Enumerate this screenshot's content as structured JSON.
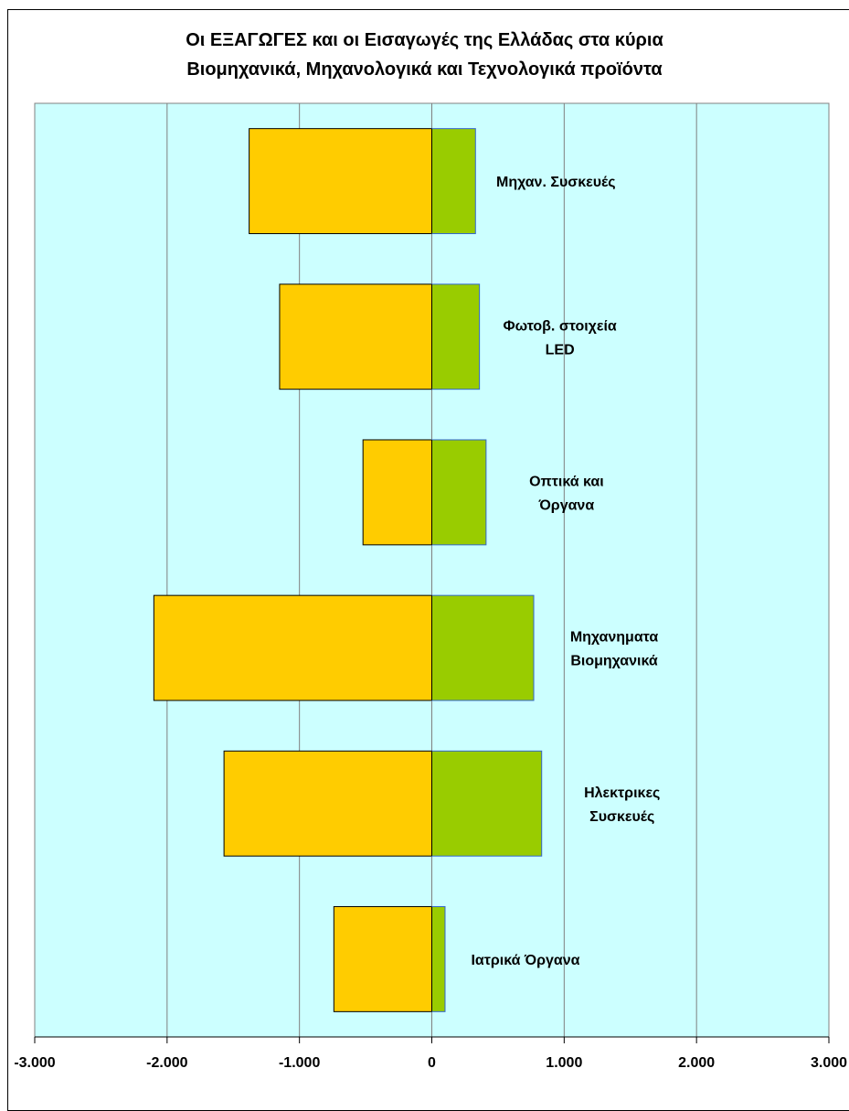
{
  "chart_data": {
    "type": "bar",
    "title_lines": [
      "Οι ΕΞΑΓΩΓΕΣ και οι Εισαγωγές της Ελλάδας στα κύρια",
      "Βιομηχανικά, Μηχανολογικά και Τεχνολογικά προϊόντα"
    ],
    "categories": [
      [
        "Μηχαν. Συσκευές"
      ],
      [
        "Φωτοβ. στοιχεία",
        "LED"
      ],
      [
        "Οπτικά και",
        "Όργανα"
      ],
      [
        "Μηχανηματα",
        "Βιομηχανικά"
      ],
      [
        "Ηλεκτρικες",
        "Συσκευές"
      ],
      [
        "Ιατρικά Όργανα"
      ]
    ],
    "series": [
      {
        "values": [
          -1380,
          -1150,
          -520,
          -2100,
          -1570,
          -740
        ],
        "color": "#FFCC00"
      },
      {
        "values": [
          330,
          360,
          410,
          770,
          830,
          100
        ],
        "color": "#99CC00"
      }
    ],
    "xlim": [
      -3000,
      3000
    ],
    "xticks": [
      -3000,
      -2000,
      -1000,
      0,
      1000,
      2000,
      3000
    ],
    "xtick_labels": [
      "-3.000",
      "-2.000",
      "-1.000",
      "0",
      "1.000",
      "2.000",
      "3.000"
    ],
    "grid": true,
    "plot_background": "#CCFFFF",
    "legend": "none"
  }
}
